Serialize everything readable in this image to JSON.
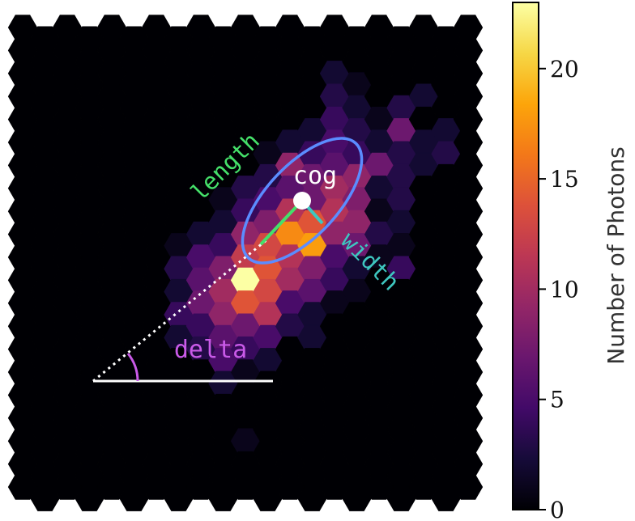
{
  "chart_data": {
    "type": "heatmap",
    "title": "",
    "colorbar": {
      "label": "Number of Photons",
      "colormap": "inferno",
      "min": 0,
      "max": 23,
      "ticks": [
        0,
        5,
        10,
        15,
        20
      ],
      "tick_labels": [
        "0",
        "5",
        "10",
        "15",
        "20"
      ]
    },
    "annotations": {
      "cog": "cog",
      "length": "length",
      "width": "width",
      "delta": "delta"
    },
    "annotation_colors": {
      "ellipse": "#5b8cff",
      "length": "#45e06a",
      "width": "#3ec7c0",
      "delta": "#c95ae8",
      "cog": "#ffffff"
    },
    "hexgrid": {
      "cols": 21,
      "rows": 21
    },
    "cells": [
      {
        "c": 14,
        "r": 2,
        "v": 2
      },
      {
        "c": 15,
        "r": 2,
        "v": 1
      },
      {
        "c": 14,
        "r": 3,
        "v": 3
      },
      {
        "c": 15,
        "r": 3,
        "v": 2
      },
      {
        "c": 17,
        "r": 3,
        "v": 3
      },
      {
        "c": 18,
        "r": 3,
        "v": 2
      },
      {
        "c": 13,
        "r": 4,
        "v": 2
      },
      {
        "c": 14,
        "r": 4,
        "v": 4
      },
      {
        "c": 15,
        "r": 4,
        "v": 3
      },
      {
        "c": 16,
        "r": 4,
        "v": 1
      },
      {
        "c": 17,
        "r": 4,
        "v": 7
      },
      {
        "c": 18,
        "r": 4,
        "v": 0
      },
      {
        "c": 19,
        "r": 4,
        "v": 2
      },
      {
        "c": 11,
        "r": 5,
        "v": 1
      },
      {
        "c": 12,
        "r": 5,
        "v": 2
      },
      {
        "c": 13,
        "r": 5,
        "v": 4
      },
      {
        "c": 14,
        "r": 5,
        "v": 5
      },
      {
        "c": 15,
        "r": 5,
        "v": 4
      },
      {
        "c": 16,
        "r": 5,
        "v": 2
      },
      {
        "c": 17,
        "r": 5,
        "v": 3
      },
      {
        "c": 18,
        "r": 5,
        "v": 2
      },
      {
        "c": 19,
        "r": 5,
        "v": 3
      },
      {
        "c": 11,
        "r": 6,
        "v": 3
      },
      {
        "c": 12,
        "r": 6,
        "v": 9
      },
      {
        "c": 13,
        "r": 6,
        "v": 7
      },
      {
        "c": 14,
        "r": 6,
        "v": 6
      },
      {
        "c": 15,
        "r": 6,
        "v": 9
      },
      {
        "c": 16,
        "r": 6,
        "v": 7
      },
      {
        "c": 17,
        "r": 6,
        "v": 3
      },
      {
        "c": 18,
        "r": 6,
        "v": 2
      },
      {
        "c": 9,
        "r": 7,
        "v": 1
      },
      {
        "c": 10,
        "r": 7,
        "v": 3
      },
      {
        "c": 11,
        "r": 7,
        "v": 5
      },
      {
        "c": 12,
        "r": 7,
        "v": 6
      },
      {
        "c": 13,
        "r": 7,
        "v": 7
      },
      {
        "c": 14,
        "r": 7,
        "v": 10
      },
      {
        "c": 15,
        "r": 7,
        "v": 8
      },
      {
        "c": 16,
        "r": 7,
        "v": 2
      },
      {
        "c": 17,
        "r": 7,
        "v": 3
      },
      {
        "c": 9,
        "r": 8,
        "v": 2
      },
      {
        "c": 10,
        "r": 8,
        "v": 4
      },
      {
        "c": 11,
        "r": 8,
        "v": 8
      },
      {
        "c": 12,
        "r": 8,
        "v": 11
      },
      {
        "c": 13,
        "r": 8,
        "v": 14
      },
      {
        "c": 14,
        "r": 8,
        "v": 11
      },
      {
        "c": 15,
        "r": 8,
        "v": 9
      },
      {
        "c": 16,
        "r": 8,
        "v": 1
      },
      {
        "c": 17,
        "r": 8,
        "v": 2
      },
      {
        "c": 7,
        "r": 9,
        "v": 1
      },
      {
        "c": 8,
        "r": 9,
        "v": 2
      },
      {
        "c": 9,
        "r": 9,
        "v": 4
      },
      {
        "c": 10,
        "r": 9,
        "v": 9
      },
      {
        "c": 11,
        "r": 9,
        "v": 13
      },
      {
        "c": 12,
        "r": 9,
        "v": 17
      },
      {
        "c": 13,
        "r": 9,
        "v": 18
      },
      {
        "c": 14,
        "r": 9,
        "v": 9
      },
      {
        "c": 15,
        "r": 9,
        "v": 7
      },
      {
        "c": 16,
        "r": 9,
        "v": 3
      },
      {
        "c": 17,
        "r": 9,
        "v": 1
      },
      {
        "c": 7,
        "r": 10,
        "v": 3
      },
      {
        "c": 8,
        "r": 10,
        "v": 5
      },
      {
        "c": 9,
        "r": 10,
        "v": 8
      },
      {
        "c": 10,
        "r": 10,
        "v": 12
      },
      {
        "c": 11,
        "r": 10,
        "v": 14
      },
      {
        "c": 12,
        "r": 10,
        "v": 11
      },
      {
        "c": 13,
        "r": 10,
        "v": 8
      },
      {
        "c": 14,
        "r": 10,
        "v": 5
      },
      {
        "c": 15,
        "r": 10,
        "v": 2
      },
      {
        "c": 16,
        "r": 10,
        "v": 1
      },
      {
        "c": 17,
        "r": 10,
        "v": 4
      },
      {
        "c": 7,
        "r": 11,
        "v": 2
      },
      {
        "c": 8,
        "r": 11,
        "v": 6
      },
      {
        "c": 9,
        "r": 11,
        "v": 10
      },
      {
        "c": 10,
        "r": 11,
        "v": 23
      },
      {
        "c": 11,
        "r": 11,
        "v": 13
      },
      {
        "c": 12,
        "r": 11,
        "v": 10
      },
      {
        "c": 13,
        "r": 11,
        "v": 6
      },
      {
        "c": 14,
        "r": 11,
        "v": 4
      },
      {
        "c": 15,
        "r": 11,
        "v": 1
      },
      {
        "c": 7,
        "r": 12,
        "v": 4
      },
      {
        "c": 8,
        "r": 12,
        "v": 7
      },
      {
        "c": 9,
        "r": 12,
        "v": 9
      },
      {
        "c": 10,
        "r": 12,
        "v": 14
      },
      {
        "c": 11,
        "r": 12,
        "v": 11
      },
      {
        "c": 12,
        "r": 12,
        "v": 5
      },
      {
        "c": 13,
        "r": 12,
        "v": 2
      },
      {
        "c": 14,
        "r": 12,
        "v": 1
      },
      {
        "c": 7,
        "r": 13,
        "v": 2
      },
      {
        "c": 8,
        "r": 13,
        "v": 4
      },
      {
        "c": 9,
        "r": 13,
        "v": 6
      },
      {
        "c": 10,
        "r": 13,
        "v": 7
      },
      {
        "c": 11,
        "r": 13,
        "v": 5
      },
      {
        "c": 12,
        "r": 13,
        "v": 3
      },
      {
        "c": 13,
        "r": 13,
        "v": 2
      },
      {
        "c": 8,
        "r": 14,
        "v": 3
      },
      {
        "c": 9,
        "r": 14,
        "v": 5
      },
      {
        "c": 10,
        "r": 14,
        "v": 4
      },
      {
        "c": 11,
        "r": 14,
        "v": 2
      },
      {
        "c": 9,
        "r": 15,
        "v": 2
      },
      {
        "c": 10,
        "r": 15,
        "v": 1
      },
      {
        "c": 10,
        "r": 18,
        "v": 1
      }
    ]
  }
}
